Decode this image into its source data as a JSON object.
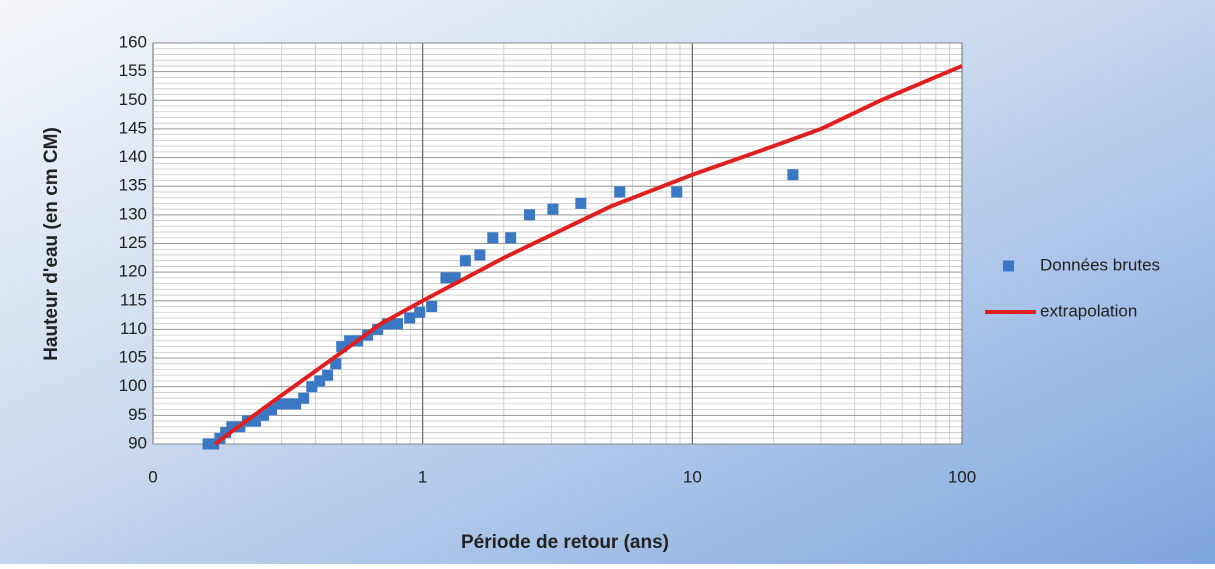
{
  "chart_data": {
    "type": "scatter",
    "x_label": "Période de retour (ans)",
    "y_label": "Hauteur d'eau (en cm CM)",
    "xscale": "log",
    "xlim": [
      0.1,
      100
    ],
    "xticks": [
      {
        "value": 0.1,
        "label": "0"
      },
      1,
      10,
      100
    ],
    "ylim": [
      90,
      160
    ],
    "yticks": [
      90,
      95,
      100,
      105,
      110,
      115,
      120,
      125,
      130,
      135,
      140,
      145,
      150,
      155,
      160
    ],
    "grid": true,
    "minor_grid": true,
    "legend": "right",
    "series": [
      {
        "name": "Données brutes",
        "type": "scatter",
        "color": "#3a78c4",
        "x": [
          0.16,
          0.168,
          0.177,
          0.186,
          0.196,
          0.21,
          0.224,
          0.24,
          0.257,
          0.275,
          0.295,
          0.316,
          0.338,
          0.362,
          0.388,
          0.415,
          0.444,
          0.476,
          0.501,
          0.536,
          0.574,
          0.625,
          0.681,
          0.741,
          0.807,
          0.895,
          0.975,
          1.08,
          1.22,
          1.32,
          1.44,
          1.63,
          1.82,
          2.12,
          2.49,
          3.04,
          3.86,
          5.38,
          8.75,
          23.6
        ],
        "values": [
          90,
          90,
          91,
          92,
          93,
          93,
          94,
          94,
          95,
          96,
          97,
          97,
          97,
          98,
          100,
          101,
          102,
          104,
          107,
          108,
          108,
          109,
          110,
          111,
          111,
          112,
          113,
          114,
          119,
          119,
          122,
          123,
          126,
          126,
          130,
          131,
          132,
          134,
          134,
          137
        ]
      },
      {
        "name": "extrapolation",
        "type": "line",
        "color": "#e02020",
        "x": [
          0.17,
          0.2,
          0.3,
          0.5,
          0.7,
          1,
          2,
          3,
          5,
          10,
          20,
          30,
          50,
          100
        ],
        "values": [
          90,
          92.5,
          98.5,
          106,
          111,
          115,
          122.5,
          126.5,
          131.5,
          137,
          142,
          145,
          150,
          156
        ]
      }
    ]
  }
}
